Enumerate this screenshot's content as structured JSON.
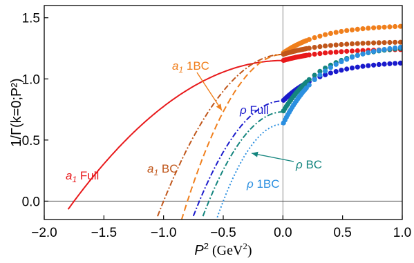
{
  "chart_data": {
    "type": "line",
    "xlabel": {
      "sym": "P",
      "sup": "2",
      "unit": " (GeV",
      "unitsup": "2",
      "close": ")"
    },
    "ylabel": "1/Γ(k=0;P²)",
    "xlim": [
      -2.0,
      1.0
    ],
    "ylim": [
      -0.15,
      1.6
    ],
    "xticks": [
      -2.0,
      -1.5,
      -1.0,
      -0.5,
      0.0,
      0.5,
      1.0
    ],
    "xtick_labels": [
      "−2.0",
      "−1.5",
      "−1.0",
      "−0.5",
      "0.0",
      "0.5",
      "1.0"
    ],
    "yticks": [
      0.0,
      0.5,
      1.0,
      1.5
    ],
    "ytick_labels": [
      "0.0",
      "0.5",
      "1.0",
      "1.5"
    ],
    "grid": false,
    "reference_lines": {
      "x": 0.0,
      "y": 0.0
    },
    "series": [
      {
        "key": "a1_full",
        "color": "#e8191b",
        "style": "solid",
        "zero": -1.75,
        "anchor": 1.15,
        "dots_start": 1.15,
        "dots_end": 1.24
      },
      {
        "key": "a1_1bc",
        "color": "#f07f1c",
        "style": "dashed",
        "zero": -0.8,
        "anchor": 1.2,
        "dots_start": 1.21,
        "dots_end": 1.43
      },
      {
        "key": "a1_bc",
        "color": "#c0561a",
        "style": "dashdot",
        "zero": -1.0,
        "anchor": 1.2,
        "dots_start": 1.2,
        "dots_end": 1.3
      },
      {
        "key": "rho_full",
        "color": "#1a1acc",
        "style": "dashdot",
        "zero": -0.7,
        "anchor": 0.82,
        "dots_start": 0.82,
        "dots_end": 1.13
      },
      {
        "key": "rho_bc",
        "color": "#14857e",
        "style": "dashdot",
        "zero": -0.62,
        "anchor": 0.73,
        "dots_start": 0.73,
        "dots_end": 1.25
      },
      {
        "key": "rho_1bc",
        "color": "#2b8fe0",
        "style": "dotted",
        "zero": -0.5,
        "anchor": 0.63,
        "dots_start": 0.63,
        "dots_end": 1.26
      }
    ],
    "annotations": [
      {
        "key": "a1_full",
        "sym": "a",
        "sub": "1",
        "text": " Full",
        "color": "#e8191b"
      },
      {
        "key": "a1_1bc",
        "sym": "a",
        "sub": "1",
        "text": " 1BC",
        "color": "#f07f1c"
      },
      {
        "key": "a1_bc",
        "sym": "a",
        "sub": "1",
        "text": " BC",
        "color": "#c0561a"
      },
      {
        "key": "rho_full",
        "sym": "ρ",
        "sub": "",
        "text": " Full",
        "color": "#1a1acc"
      },
      {
        "key": "rho_bc",
        "sym": "ρ",
        "sub": "",
        "text": " BC",
        "color": "#14857e"
      },
      {
        "key": "rho_1bc",
        "sym": "ρ",
        "sub": "",
        "text": " 1BC",
        "color": "#2b8fe0"
      }
    ]
  }
}
